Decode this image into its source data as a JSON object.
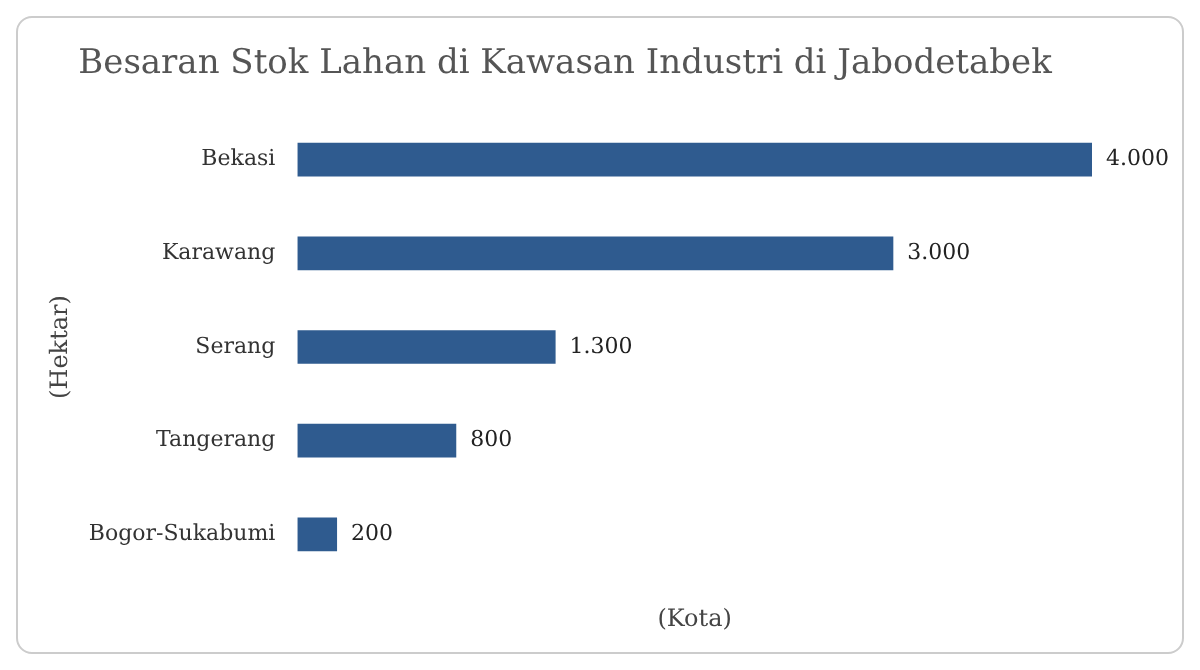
{
  "chart_data": {
    "type": "bar",
    "orientation": "horizontal",
    "title": "Besaran Stok Lahan di Kawasan Industri di Jabodetabek",
    "xlabel": "(Kota)",
    "ylabel": "(Hektar)",
    "categories": [
      "Bekasi",
      "Karawang",
      "Serang",
      "Tangerang",
      "Bogor-Sukabumi"
    ],
    "values": [
      4000,
      3000,
      1300,
      800,
      200
    ],
    "value_labels": [
      "4.000",
      "3.000",
      "1.300",
      "800",
      "200"
    ],
    "color": "#2f5b8f",
    "grid": false,
    "legend": false
  }
}
